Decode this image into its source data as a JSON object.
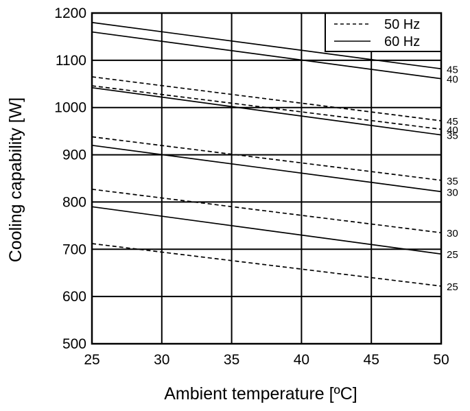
{
  "chart_data": {
    "type": "line",
    "title": "",
    "xlabel": "Ambient temperature [ºC]",
    "ylabel": "Cooling capability [W]",
    "xlim": [
      25,
      50
    ],
    "ylim": [
      500,
      1200
    ],
    "x_ticks": [
      "25",
      "30",
      "35",
      "40",
      "45",
      "50"
    ],
    "y_ticks": [
      "500",
      "600",
      "700",
      "800",
      "900",
      "1000",
      "1100",
      "1200"
    ],
    "grid": true,
    "legend_position": "top-right",
    "legend": [
      {
        "label": "50 Hz",
        "style": "dashed"
      },
      {
        "label": "60 Hz",
        "style": "solid"
      }
    ],
    "x": [
      25,
      50
    ],
    "series": [
      {
        "freq": "50 Hz",
        "style": "dashed",
        "end_label": "45",
        "values": [
          1065,
          972
        ]
      },
      {
        "freq": "50 Hz",
        "style": "dashed",
        "end_label": "40",
        "values": [
          1046,
          954
        ]
      },
      {
        "freq": "50 Hz",
        "style": "dashed",
        "end_label": "35",
        "values": [
          938,
          846
        ]
      },
      {
        "freq": "50 Hz",
        "style": "dashed",
        "end_label": "30",
        "values": [
          827,
          735
        ]
      },
      {
        "freq": "50 Hz",
        "style": "dashed",
        "end_label": "25",
        "values": [
          712,
          622
        ]
      },
      {
        "freq": "60 Hz",
        "style": "solid",
        "end_label": "45",
        "values": [
          1180,
          1082
        ]
      },
      {
        "freq": "60 Hz",
        "style": "solid",
        "end_label": "40",
        "values": [
          1160,
          1061
        ]
      },
      {
        "freq": "60 Hz",
        "style": "solid",
        "end_label": "35",
        "values": [
          1042,
          942
        ]
      },
      {
        "freq": "60 Hz",
        "style": "solid",
        "end_label": "30",
        "values": [
          920,
          822
        ]
      },
      {
        "freq": "60 Hz",
        "style": "solid",
        "end_label": "25",
        "values": [
          790,
          690
        ]
      }
    ],
    "colors": {
      "line": "#000000",
      "background": "#ffffff"
    }
  }
}
